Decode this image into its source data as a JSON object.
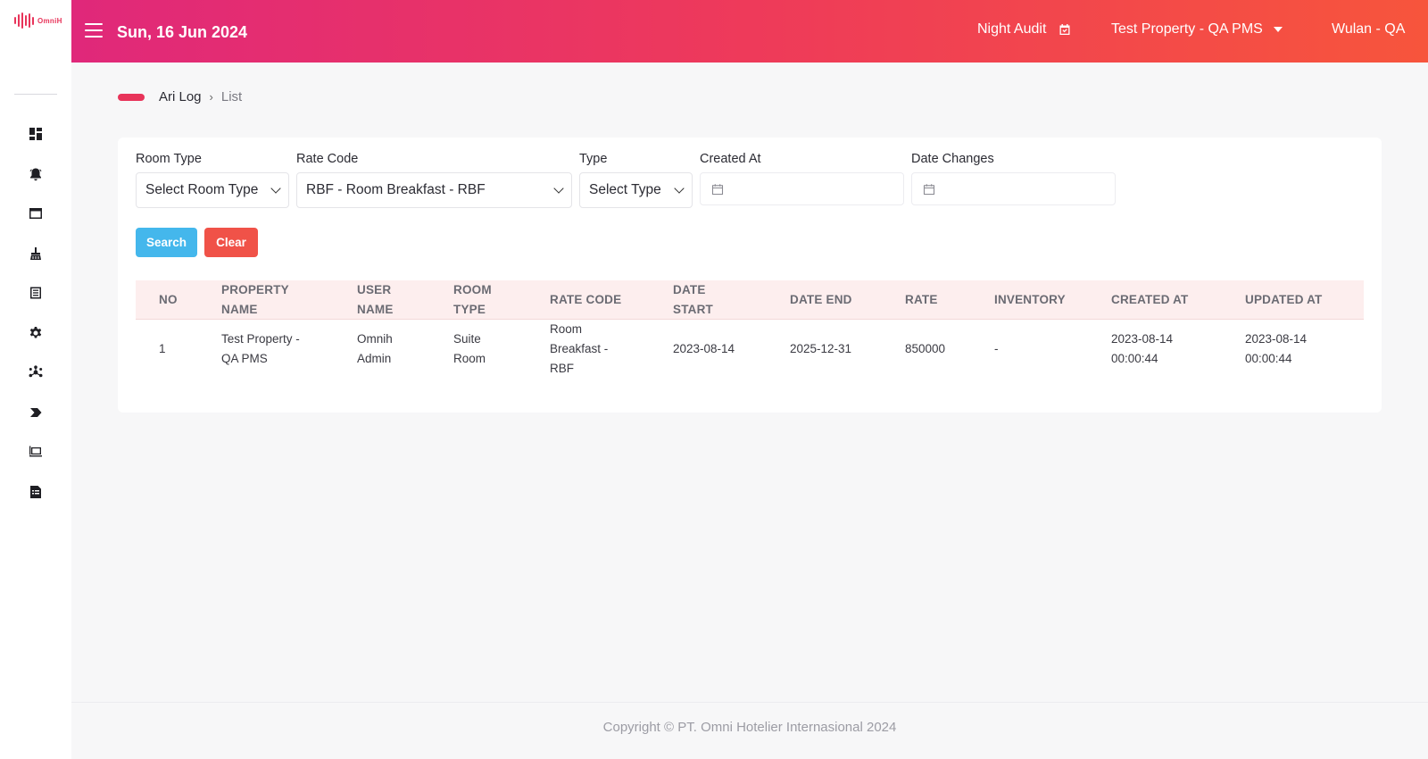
{
  "app": {
    "logo_text": "OmniH",
    "date": "Sun, 16 Jun 2024",
    "night_audit_label": "Night Audit",
    "property": "Test Property - QA PMS",
    "user": "Wulan - QA"
  },
  "sidebar": {
    "icons": [
      "dashboard-icon",
      "notification-icon",
      "window-icon",
      "housekeeping-icon",
      "list-icon",
      "settings-icon",
      "network-icon",
      "tag-icon",
      "device-icon",
      "report-icon"
    ]
  },
  "breadcrumb": {
    "parent": "Ari Log",
    "current": "List"
  },
  "filters": {
    "room_type_label": "Room Type",
    "room_type_value": "Select Room Type",
    "rate_code_label": "Rate Code",
    "rate_code_value": "RBF - Room Breakfast - RBF",
    "type_label": "Type",
    "type_value": "Select Type",
    "created_at_label": "Created At",
    "created_at_value": "",
    "date_changes_label": "Date Changes",
    "date_changes_value": ""
  },
  "buttons": {
    "search": "Search",
    "clear": "Clear"
  },
  "table": {
    "headers": {
      "no": "NO",
      "property_name_1": "PROPERTY",
      "property_name_2": "NAME",
      "user_name_1": "USER",
      "user_name_2": "NAME",
      "room_type_1": "ROOM",
      "room_type_2": "TYPE",
      "rate_code": "RATE CODE",
      "date_start_1": "DATE",
      "date_start_2": "START",
      "date_end": "DATE END",
      "rate": "RATE",
      "inventory": "INVENTORY",
      "created_at": "CREATED AT",
      "updated_at": "UPDATED AT"
    },
    "rows": [
      {
        "no": "1",
        "property_name_1": "Test Property -",
        "property_name_2": "QA PMS",
        "user_name_1": "Omnih",
        "user_name_2": "Admin",
        "room_type_1": "Suite",
        "room_type_2": "Room",
        "rate_code_1": "Room",
        "rate_code_2": "Breakfast -",
        "rate_code_3": "RBF",
        "date_start": "2023-08-14",
        "date_end": "2025-12-31",
        "rate": "850000",
        "inventory": "-",
        "created_at_1": "2023-08-14",
        "created_at_2": "00:00:44",
        "updated_at_1": "2023-08-14",
        "updated_at_2": "00:00:44"
      }
    ]
  },
  "footer": {
    "copyright": "Copyright © PT. Omni Hotelier Internasional 2024"
  },
  "colors": {
    "accent": "#e8345a",
    "header_gradient_start": "#e0287a",
    "header_gradient_end": "#f7553c",
    "search_button": "#44b7ec",
    "clear_button": "#f05248",
    "table_header_bg": "#fdeeee"
  }
}
